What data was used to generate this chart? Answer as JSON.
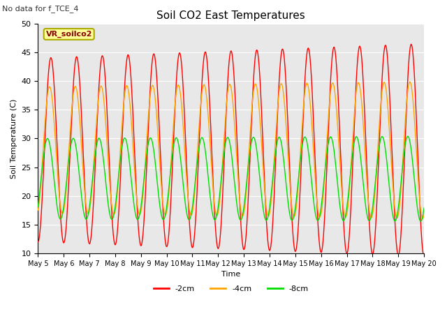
{
  "title": "Soil CO2 East Temperatures",
  "no_data_text": "No data for f_TCE_4",
  "ylabel": "Soil Temperature (C)",
  "xlabel": "Time",
  "legend_box_label": "VR_soilco2",
  "ylim": [
    10,
    50
  ],
  "x_tick_labels": [
    "May 5",
    "May 6",
    "May 7",
    "May 8",
    "May 9",
    "May 10",
    "May 11",
    "May 12",
    "May 13",
    "May 14",
    "May 15",
    "May 16",
    "May 17",
    "May 18",
    "May 19",
    "May 20"
  ],
  "line_colors": [
    "#ff0000",
    "#ffa500",
    "#00dd00"
  ],
  "line_labels": [
    "-2cm",
    "-4cm",
    "-8cm"
  ],
  "bg_color": "#e8e8e8",
  "fig_bg": "#ffffff"
}
